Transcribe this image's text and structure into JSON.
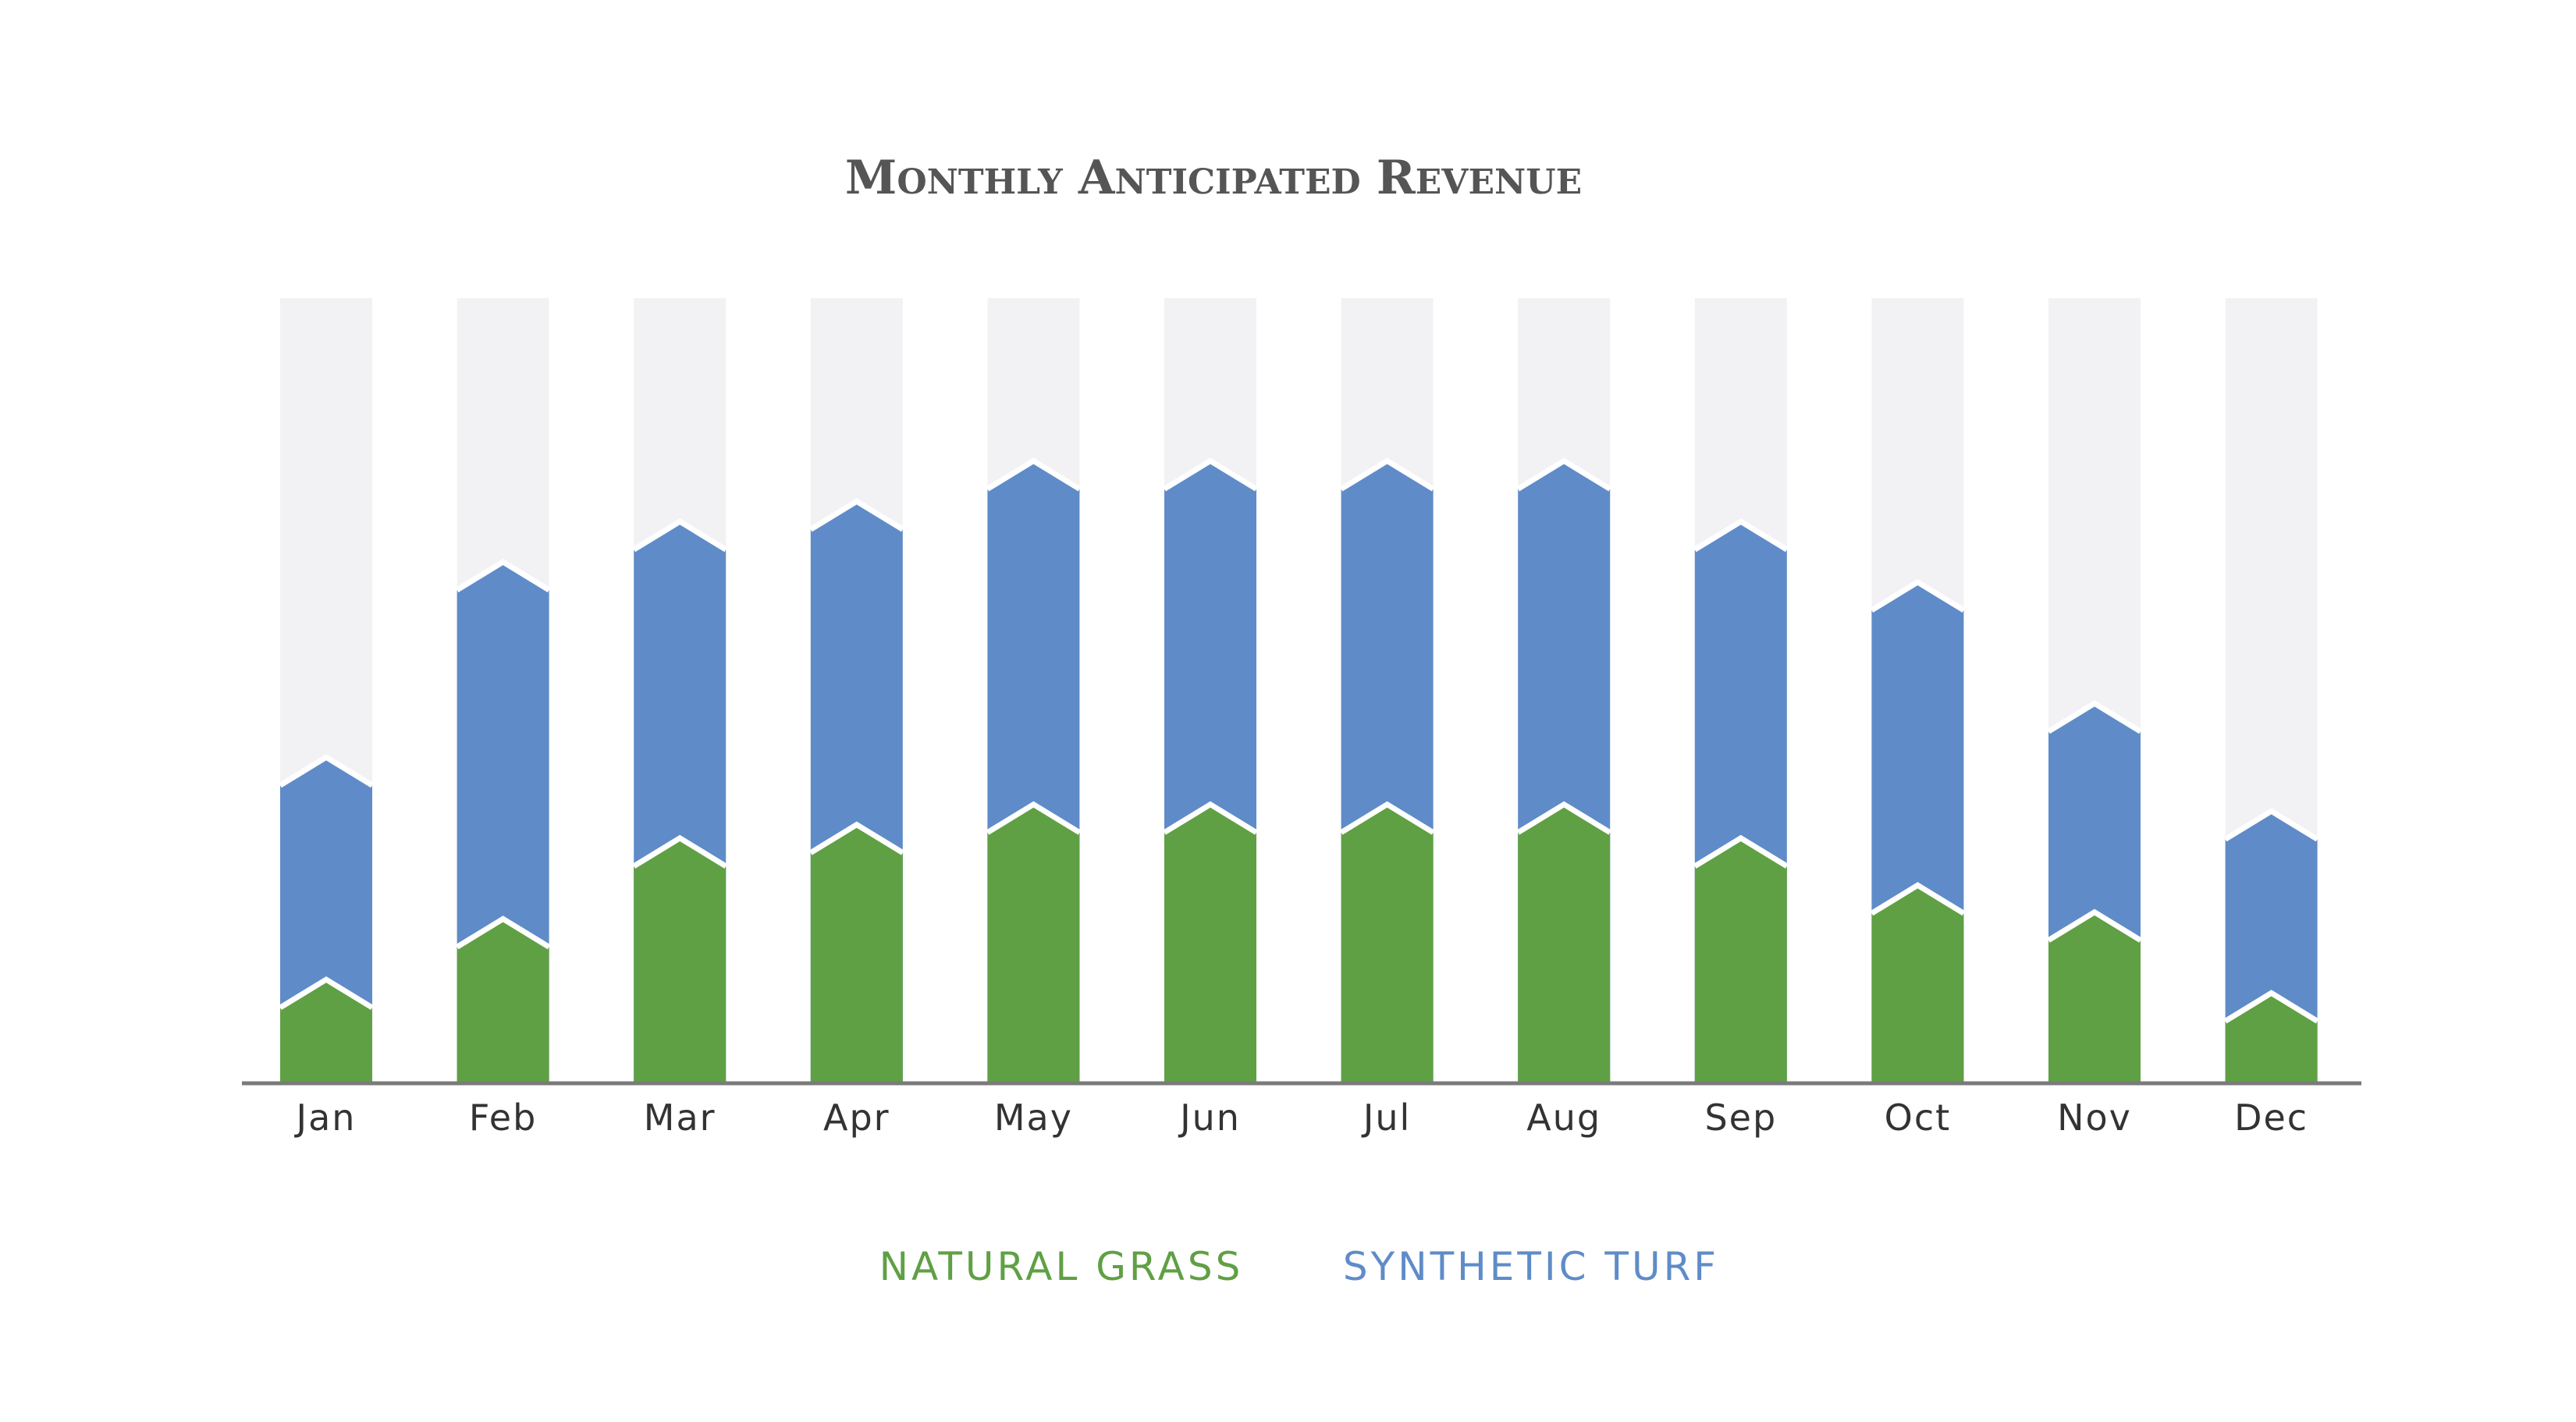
{
  "chart_data": {
    "type": "bar",
    "stacked": true,
    "title": "Monthly Anticipated Revenue",
    "categories": [
      "Jan",
      "Feb",
      "Mar",
      "Apr",
      "May",
      "Jun",
      "Jul",
      "Aug",
      "Sep",
      "Oct",
      "Nov",
      "Dec"
    ],
    "series": [
      {
        "name": "NATURAL GRASS",
        "color": "#5fa044",
        "values": [
          11,
          20,
          32,
          34,
          37,
          37,
          37,
          37,
          32,
          25,
          21,
          9
        ]
      },
      {
        "name": "SYNTHETIC TURF",
        "color": "#5f8cc8",
        "values": [
          33,
          53,
          47,
          48,
          51,
          51,
          51,
          51,
          47,
          45,
          31,
          27
        ]
      }
    ],
    "ylim": [
      0,
      100
    ],
    "background_bar_color": "#f2f2f4",
    "axis_color": "#7a7a7a",
    "grid": false,
    "legend_position": "bottom-center",
    "xlabel": "",
    "ylabel": ""
  }
}
